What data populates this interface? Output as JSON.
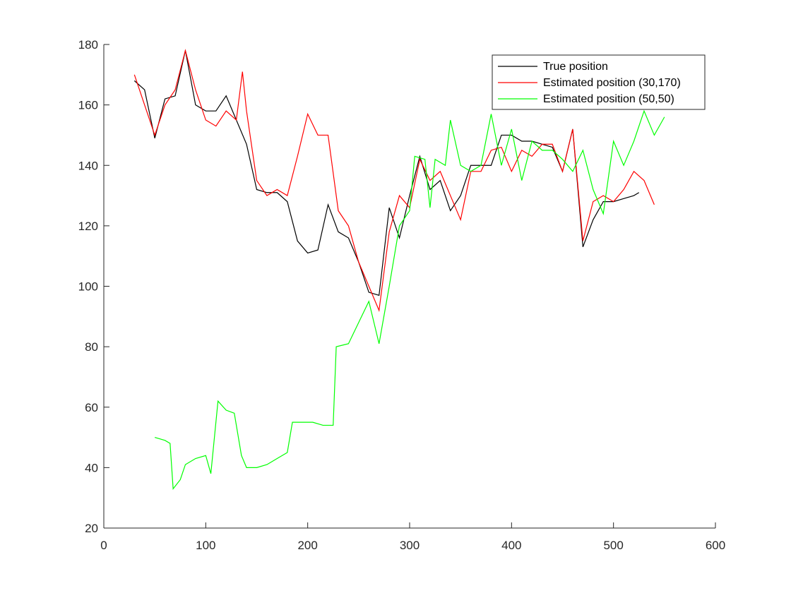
{
  "chart_data": {
    "type": "line",
    "xlim": [
      0,
      600
    ],
    "xticks": [
      0,
      100,
      200,
      300,
      400,
      500,
      600
    ],
    "ylim": [
      20,
      180
    ],
    "yticks": [
      20,
      40,
      60,
      80,
      100,
      120,
      140,
      160,
      180
    ],
    "legend": "upper-right",
    "series": [
      {
        "name": "True position",
        "color": "#000000",
        "x": [
          30,
          40,
          50,
          60,
          70,
          80,
          90,
          100,
          110,
          120,
          130,
          140,
          150,
          160,
          170,
          180,
          190,
          200,
          210,
          220,
          230,
          240,
          250,
          260,
          270,
          280,
          290,
          300,
          310,
          320,
          330,
          340,
          350,
          360,
          370,
          380,
          390,
          400,
          410,
          420,
          430,
          440,
          450,
          460,
          470,
          480,
          490,
          500,
          510,
          520,
          525
        ],
        "values": [
          168,
          165,
          149,
          162,
          163,
          178,
          160,
          158,
          158,
          163,
          155,
          147,
          132,
          131,
          131,
          128,
          115,
          111,
          112,
          127,
          118,
          116,
          108,
          98,
          97,
          126,
          116,
          130,
          143,
          132,
          135,
          125,
          130,
          140,
          140,
          140,
          150,
          150,
          148,
          148,
          147,
          146,
          138,
          152,
          113,
          122,
          128,
          128,
          129,
          130,
          131
        ]
      },
      {
        "name": "Estimated position (30,170)",
        "color": "#ff0000",
        "x": [
          30,
          40,
          50,
          60,
          70,
          80,
          90,
          100,
          110,
          120,
          130,
          136,
          140,
          150,
          160,
          170,
          180,
          190,
          200,
          210,
          220,
          230,
          240,
          250,
          260,
          270,
          280,
          290,
          300,
          310,
          320,
          330,
          340,
          350,
          360,
          370,
          380,
          390,
          400,
          410,
          420,
          430,
          440,
          450,
          460,
          470,
          480,
          490,
          500,
          510,
          520,
          530,
          540
        ],
        "values": [
          170,
          160,
          150,
          160,
          165,
          178,
          165,
          155,
          153,
          158,
          155,
          171,
          158,
          135,
          130,
          132,
          130,
          143,
          157,
          150,
          150,
          125,
          120,
          108,
          100,
          92,
          118,
          130,
          126,
          142,
          135,
          138,
          130,
          122,
          138,
          138,
          145,
          146,
          138,
          145,
          143,
          147,
          147,
          138,
          152,
          115,
          128,
          130,
          128,
          132,
          138,
          135,
          127
        ]
      },
      {
        "name": "Estimated position (50,50)",
        "color": "#00ff00",
        "x": [
          50,
          60,
          65,
          68,
          75,
          80,
          90,
          100,
          105,
          112,
          120,
          128,
          135,
          140,
          150,
          160,
          170,
          180,
          185,
          195,
          205,
          215,
          225,
          228,
          240,
          250,
          260,
          270,
          280,
          290,
          300,
          305,
          315,
          320,
          325,
          335,
          340,
          350,
          360,
          370,
          380,
          390,
          400,
          410,
          420,
          430,
          440,
          450,
          460,
          470,
          480,
          490,
          500,
          510,
          520,
          530,
          540,
          550
        ],
        "values": [
          50,
          49,
          48,
          33,
          36,
          41,
          43,
          44,
          38,
          62,
          59,
          58,
          44,
          40,
          40,
          41,
          43,
          45,
          55,
          55,
          55,
          54,
          54,
          80,
          81,
          88,
          95,
          81,
          100,
          120,
          125,
          143,
          142,
          126,
          142,
          140,
          155,
          140,
          138,
          140,
          157,
          140,
          152,
          135,
          148,
          145,
          145,
          142,
          138,
          145,
          132,
          124,
          148,
          140,
          148,
          158,
          150,
          156
        ]
      }
    ]
  }
}
